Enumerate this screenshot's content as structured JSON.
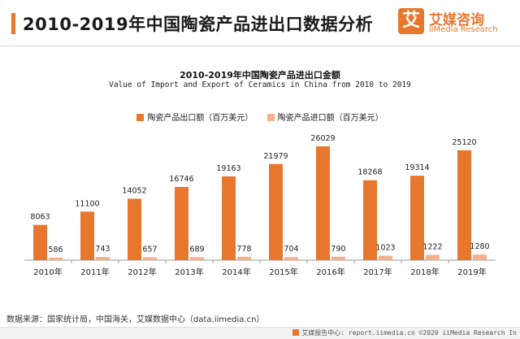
{
  "header": {
    "title": "2010-2019年中国陶瓷产品进出口数据分析",
    "brand_logo": "艾",
    "brand_cn": "艾媒咨询",
    "brand_en": "iiMedia Research",
    "accent_color": "#e8772e"
  },
  "chart_data": {
    "type": "bar",
    "title": "2010-2019年中国陶瓷产品进出口金额",
    "subtitle": "Value of Import and Export of Ceramics in China from 2010 to 2019",
    "categories": [
      "2010年",
      "2011年",
      "2012年",
      "2013年",
      "2014年",
      "2015年",
      "2016年",
      "2017年",
      "2018年",
      "2019年"
    ],
    "series": [
      {
        "name": "陶瓷产品出口额（百万美元）",
        "color": "#e8772e",
        "values": [
          8063,
          11100,
          14052,
          16746,
          19163,
          21979,
          26029,
          18268,
          19314,
          25120
        ]
      },
      {
        "name": "陶瓷产品进口额（百万美元）",
        "color": "#f4b08a",
        "values": [
          586,
          743,
          657,
          689,
          778,
          704,
          790,
          1023,
          1222,
          1280
        ]
      }
    ],
    "ylim": [
      0,
      26029
    ],
    "grid": false,
    "legend": "top-center"
  },
  "footer": {
    "source": "数据来源：国家统计局，中国海关，艾媒数据中心（data.iimedia.cn）",
    "bottom_text": "艾媒报告中心: report.iimedia.cn ©2020  iiMedia Research  In"
  }
}
